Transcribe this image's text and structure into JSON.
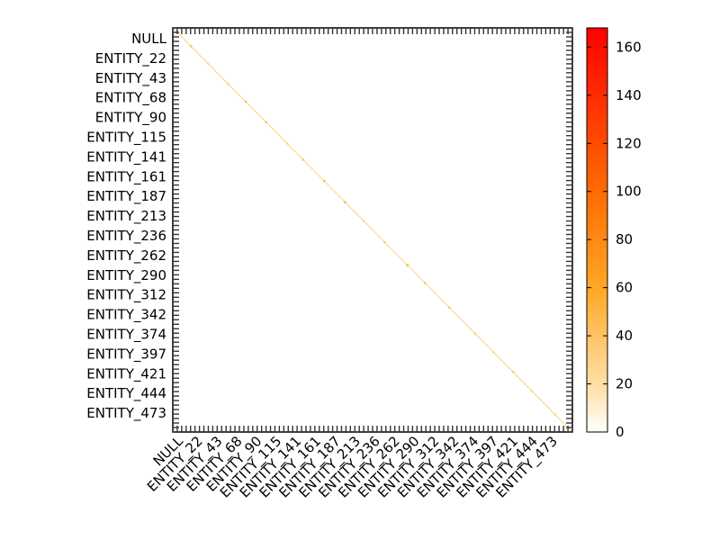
{
  "chart_data": {
    "type": "heatmap",
    "title": "",
    "xlabel": "",
    "ylabel": "",
    "tick_labels": [
      "NULL",
      "ENTITY_22",
      "ENTITY_43",
      "ENTITY_68",
      "ENTITY_90",
      "ENTITY_115",
      "ENTITY_141",
      "ENTITY_161",
      "ENTITY_187",
      "ENTITY_213",
      "ENTITY_236",
      "ENTITY_262",
      "ENTITY_290",
      "ENTITY_312",
      "ENTITY_342",
      "ENTITY_374",
      "ENTITY_397",
      "ENTITY_421",
      "ENTITY_444",
      "ENTITY_473"
    ],
    "matrix_size": 495,
    "pattern": "diagonal-dominant",
    "diagonal_values": [
      {
        "index": 0,
        "value": 10
      },
      {
        "index": 22,
        "value": 45
      },
      {
        "index": 43,
        "value": 15
      },
      {
        "index": 68,
        "value": 30
      },
      {
        "index": 90,
        "value": 55
      },
      {
        "index": 115,
        "value": 50
      },
      {
        "index": 141,
        "value": 20
      },
      {
        "index": 161,
        "value": 40
      },
      {
        "index": 187,
        "value": 60
      },
      {
        "index": 213,
        "value": 65
      },
      {
        "index": 236,
        "value": 25
      },
      {
        "index": 262,
        "value": 35
      },
      {
        "index": 290,
        "value": 70
      },
      {
        "index": 312,
        "value": 45
      },
      {
        "index": 342,
        "value": 40
      },
      {
        "index": 374,
        "value": 30
      },
      {
        "index": 397,
        "value": 25
      },
      {
        "index": 421,
        "value": 35
      },
      {
        "index": 444,
        "value": 20
      },
      {
        "index": 473,
        "value": 30
      }
    ],
    "colorbar": {
      "colormap": "autumn-reversed",
      "color_low": "#ffffff",
      "color_mid": "#ff9900",
      "color_high": "#ff0000",
      "min": 0,
      "max": 168,
      "ticks": [
        0,
        20,
        40,
        60,
        80,
        100,
        120,
        140,
        160
      ],
      "placement": "right"
    },
    "grid": false
  }
}
